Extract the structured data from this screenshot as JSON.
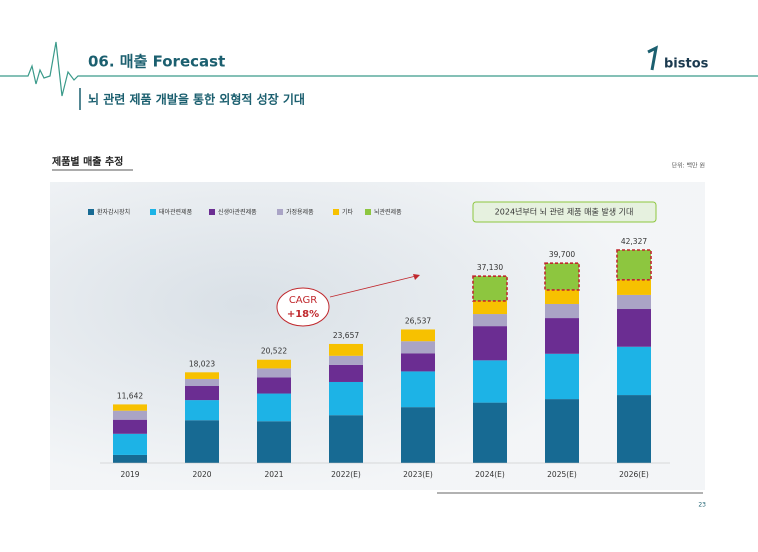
{
  "slide": {
    "section_title": "06. 매출 Forecast",
    "logo": "bistos",
    "subtitle": "뇌 관련 제품  개발을 통한 외형적 성장 기대",
    "page_number": "23"
  },
  "chart_data": {
    "type": "stacked_bar",
    "title": "제품별 매출 추정",
    "unit": "단위: 백만 원",
    "annotations": [
      "2024년부터 뇌 관련 제품 매출 발생 기대",
      "CAGR",
      "+18%"
    ],
    "categories": [
      "2019",
      "2020",
      "2021",
      "2022(E)",
      "2023(E)",
      "2024(E)",
      "2025(E)",
      "2026(E)"
    ],
    "series": [
      {
        "name": "환자감시장치",
        "color": "#176a93",
        "values": [
          1600,
          8500,
          8300,
          9500,
          11100,
          12000,
          12700,
          13500
        ]
      },
      {
        "name": "태아관련제품",
        "color": "#1db3e6",
        "values": [
          4200,
          4000,
          5500,
          6600,
          7100,
          8400,
          9000,
          9600
        ]
      },
      {
        "name": "신생아관련제품",
        "color": "#6b2d92",
        "values": [
          2800,
          2800,
          3200,
          3400,
          3600,
          6800,
          7100,
          7500
        ]
      },
      {
        "name": "가정용제품",
        "color": "#aaa4c6",
        "values": [
          1800,
          1400,
          1800,
          1800,
          2400,
          2400,
          2800,
          2800
        ]
      },
      {
        "name": "기타",
        "color": "#f7c100",
        "values": [
          1242,
          1323,
          1722,
          2357,
          2337,
          2600,
          2800,
          3000
        ]
      },
      {
        "name": "뇌관련제품",
        "color": "#8dc63f",
        "outline": "#c0282d",
        "values": [
          0,
          0,
          0,
          0,
          0,
          4930,
          5300,
          5927
        ]
      }
    ],
    "totals": [
      {
        "value": 11642,
        "label": "11,642"
      },
      {
        "value": 18023,
        "label": "18,023"
      },
      {
        "value": 20522,
        "label": "20,522"
      },
      {
        "value": 23657,
        "label": "23,657"
      },
      {
        "value": 26537,
        "label": "26,537"
      },
      {
        "value": 37130,
        "label": "37,130"
      },
      {
        "value": 39700,
        "label": "39,700"
      },
      {
        "value": 42327,
        "label": "42,327"
      }
    ]
  }
}
